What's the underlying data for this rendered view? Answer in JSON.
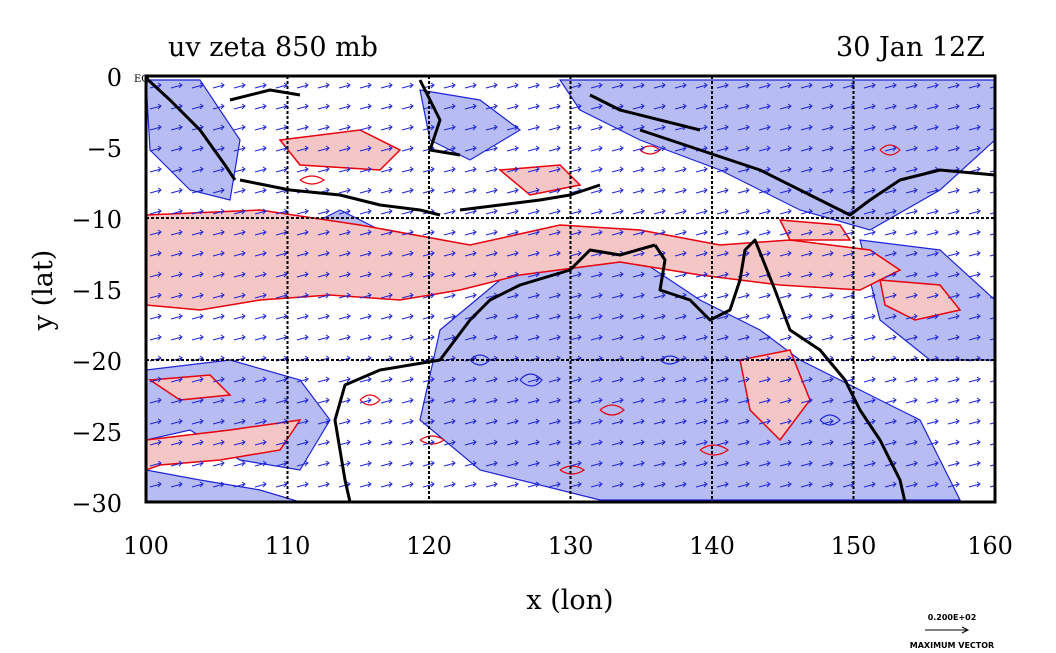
{
  "title_left": "uv zeta 850 mb",
  "title_right": "30 Jan 12Z",
  "xlabel": "x (lon)",
  "ylabel": "y (lat)",
  "eq_label": "EQ",
  "x_ticks": [
    "100",
    "110",
    "120",
    "130",
    "140",
    "150",
    "160"
  ],
  "y_ticks": [
    "0",
    "−5",
    "−10",
    "−15",
    "−20",
    "−25",
    "−30"
  ],
  "vector_scale_value": "0.200E+02",
  "vector_scale_label": "MAXIMUM VECTOR",
  "map": {
    "lon_range": [
      100,
      160
    ],
    "lat_range": [
      -30,
      0
    ],
    "grid_lons": [
      110,
      120,
      130,
      140,
      150
    ],
    "grid_lats": [
      -10,
      -20
    ],
    "colors": {
      "positive_vorticity_fill": "#f4c6c6",
      "negative_vorticity_fill": "#b7bdf2",
      "positive_contour": "#e8000b",
      "negative_contour": "#1f25d6",
      "vectors": "#1f25d6",
      "coastline": "#000000"
    }
  }
}
